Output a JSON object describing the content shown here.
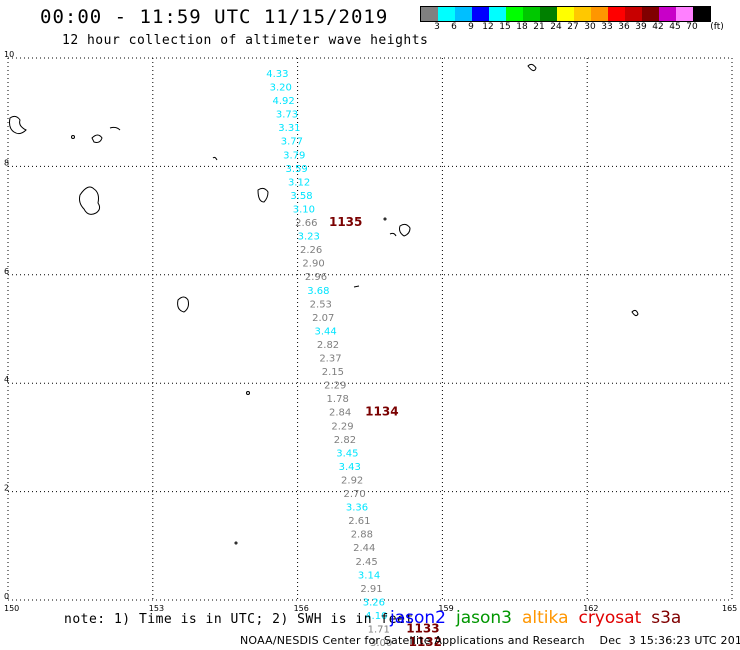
{
  "title": "00:00 - 11:59 UTC 11/15/2019",
  "subtitle": "12 hour collection of altimeter wave heights",
  "colorbar": {
    "unit": "(ft)",
    "labels": [
      "3",
      "6",
      "9",
      "12",
      "15",
      "18",
      "21",
      "24",
      "27",
      "30",
      "33",
      "36",
      "39",
      "42",
      "45",
      "70"
    ],
    "colors": [
      "#808080",
      "#00ffff",
      "#00bfff",
      "#0000ff",
      "#00ffff",
      "#00ff00",
      "#00c800",
      "#008000",
      "#ffff00",
      "#ffc800",
      "#ff9600",
      "#ff0000",
      "#c80000",
      "#800000",
      "#c800c8",
      "#ff80ff",
      "#000000"
    ]
  },
  "map": {
    "lon_range": [
      150,
      165
    ],
    "lat_range": [
      0,
      10
    ],
    "lon_ticks": [
      "150",
      "153",
      "156",
      "159",
      "162",
      "165"
    ],
    "lat_ticks": [
      "0",
      "2",
      "4",
      "6",
      "8",
      "10"
    ],
    "grid": "dotted"
  },
  "track": {
    "colors": {
      "cyan": "#00e5ff",
      "gray": "#7f7f7f"
    },
    "points": [
      {
        "lon": 155.35,
        "lat": 9.65,
        "value": "4.33",
        "color": "cyan"
      },
      {
        "lon": 155.42,
        "lat": 9.4,
        "value": "3.20",
        "color": "cyan"
      },
      {
        "lon": 155.48,
        "lat": 9.15,
        "value": "4.92",
        "color": "cyan"
      },
      {
        "lon": 155.55,
        "lat": 8.9,
        "value": "3.73",
        "color": "cyan"
      },
      {
        "lon": 155.6,
        "lat": 8.65,
        "value": "3.31",
        "color": "cyan"
      },
      {
        "lon": 155.65,
        "lat": 8.4,
        "value": "3.77",
        "color": "cyan"
      },
      {
        "lon": 155.7,
        "lat": 8.15,
        "value": "3.79",
        "color": "cyan"
      },
      {
        "lon": 155.75,
        "lat": 7.9,
        "value": "3.59",
        "color": "cyan"
      },
      {
        "lon": 155.8,
        "lat": 7.65,
        "value": "3.12",
        "color": "cyan"
      },
      {
        "lon": 155.85,
        "lat": 7.4,
        "value": "3.58",
        "color": "cyan"
      },
      {
        "lon": 155.9,
        "lat": 7.15,
        "value": "3.10",
        "color": "cyan"
      },
      {
        "lon": 155.95,
        "lat": 6.9,
        "value": "2.66",
        "color": "gray"
      },
      {
        "lon": 156.0,
        "lat": 6.65,
        "value": "3.23",
        "color": "cyan"
      },
      {
        "lon": 156.05,
        "lat": 6.4,
        "value": "2.26",
        "color": "gray"
      },
      {
        "lon": 156.1,
        "lat": 6.15,
        "value": "2.90",
        "color": "gray"
      },
      {
        "lon": 156.15,
        "lat": 5.9,
        "value": "2.96",
        "color": "gray"
      },
      {
        "lon": 156.2,
        "lat": 5.65,
        "value": "3.68",
        "color": "cyan"
      },
      {
        "lon": 156.25,
        "lat": 5.4,
        "value": "2.53",
        "color": "gray"
      },
      {
        "lon": 156.3,
        "lat": 5.15,
        "value": "2.07",
        "color": "gray"
      },
      {
        "lon": 156.35,
        "lat": 4.9,
        "value": "3.44",
        "color": "cyan"
      },
      {
        "lon": 156.4,
        "lat": 4.65,
        "value": "2.82",
        "color": "gray"
      },
      {
        "lon": 156.45,
        "lat": 4.4,
        "value": "2.37",
        "color": "gray"
      },
      {
        "lon": 156.5,
        "lat": 4.15,
        "value": "2.15",
        "color": "gray"
      },
      {
        "lon": 156.55,
        "lat": 3.9,
        "value": "2.29",
        "color": "gray"
      },
      {
        "lon": 156.6,
        "lat": 3.65,
        "value": "1.78",
        "color": "gray"
      },
      {
        "lon": 156.65,
        "lat": 3.4,
        "value": "2.84",
        "color": "gray"
      },
      {
        "lon": 156.7,
        "lat": 3.15,
        "value": "2.29",
        "color": "gray"
      },
      {
        "lon": 156.75,
        "lat": 2.9,
        "value": "2.82",
        "color": "gray"
      },
      {
        "lon": 156.8,
        "lat": 2.65,
        "value": "3.45",
        "color": "cyan"
      },
      {
        "lon": 156.85,
        "lat": 2.4,
        "value": "3.43",
        "color": "cyan"
      },
      {
        "lon": 156.9,
        "lat": 2.15,
        "value": "2.92",
        "color": "gray"
      },
      {
        "lon": 156.95,
        "lat": 1.9,
        "value": "2.70",
        "color": "gray"
      },
      {
        "lon": 157.0,
        "lat": 1.65,
        "value": "3.36",
        "color": "cyan"
      },
      {
        "lon": 157.05,
        "lat": 1.4,
        "value": "2.61",
        "color": "gray"
      },
      {
        "lon": 157.1,
        "lat": 1.15,
        "value": "2.88",
        "color": "gray"
      },
      {
        "lon": 157.15,
        "lat": 0.9,
        "value": "2.44",
        "color": "gray"
      },
      {
        "lon": 157.2,
        "lat": 0.65,
        "value": "2.45",
        "color": "gray"
      },
      {
        "lon": 157.25,
        "lat": 0.4,
        "value": "3.14",
        "color": "cyan"
      },
      {
        "lon": 157.3,
        "lat": 0.15,
        "value": "2.91",
        "color": "gray"
      },
      {
        "lon": 157.35,
        "lat": -0.1,
        "value": "3.26",
        "color": "cyan"
      },
      {
        "lon": 157.4,
        "lat": -0.35,
        "value": "4.10",
        "color": "cyan"
      },
      {
        "lon": 157.45,
        "lat": -0.6,
        "value": "1.71",
        "color": "gray"
      },
      {
        "lon": 157.5,
        "lat": -0.85,
        "value": "3.00",
        "color": "gray"
      }
    ],
    "pass_labels": [
      {
        "lon": 156.65,
        "lat": 6.9,
        "text": "1135"
      },
      {
        "lon": 157.4,
        "lat": 3.4,
        "text": "1134"
      },
      {
        "lon": 158.25,
        "lat": -0.6,
        "text": "1133"
      },
      {
        "lon": 158.3,
        "lat": -0.85,
        "text": "1132"
      }
    ]
  },
  "note": "note: 1) Time is in UTC; 2) SWH is in feet",
  "legend": [
    {
      "text": "jason2",
      "color": "#0000ff"
    },
    {
      "text": "jason3",
      "color": "#009600"
    },
    {
      "text": "altika",
      "color": "#ff9600"
    },
    {
      "text": "cryosat",
      "color": "#e00000"
    },
    {
      "text": "s3a",
      "color": "#800000"
    }
  ],
  "credit": "NOAA/NESDIS Center for Satellite Applications and Research    Dec  3 15:36:23 UTC 2019"
}
